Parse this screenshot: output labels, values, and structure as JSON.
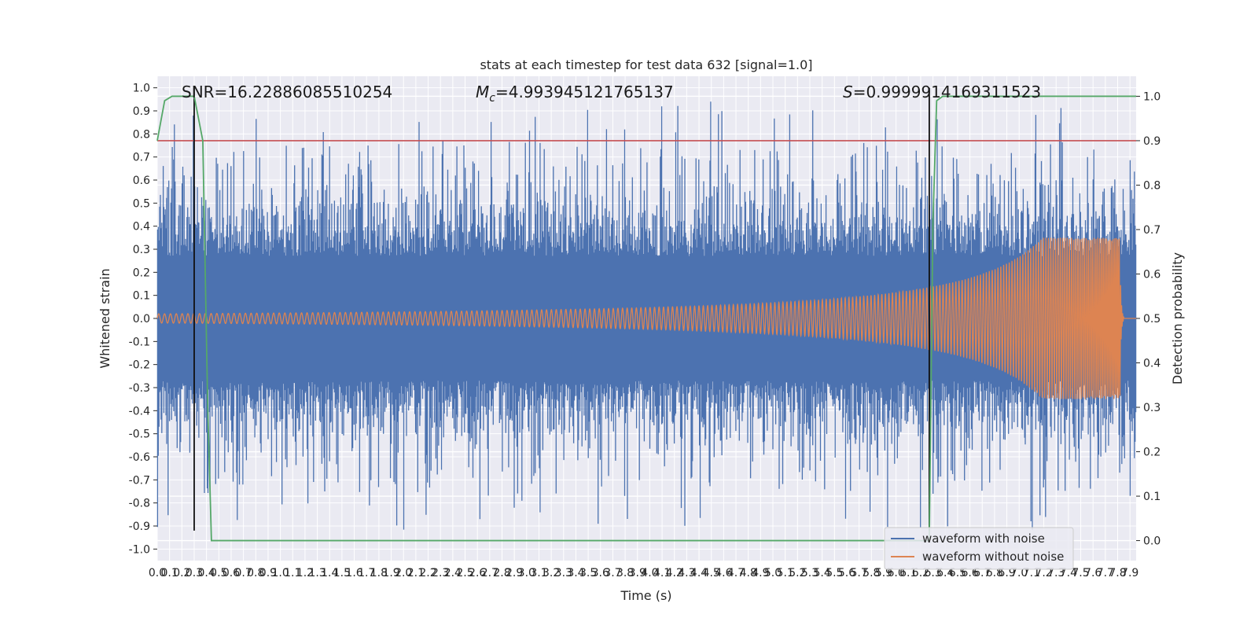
{
  "chart_data": {
    "type": "line",
    "title": "stats at each timestep for test data 632 [signal=1.0]",
    "xlabel": "Time (s)",
    "ylabel_left": "Whitened strain",
    "ylabel_right": "Detection probability",
    "xlim": [
      0.0,
      7.95
    ],
    "ylim_left": [
      -1.05,
      1.05
    ],
    "ylim_right": [
      -0.045,
      1.045
    ],
    "x_ticks": [
      "0.0",
      "0.1",
      "0.2",
      "0.3",
      "0.4",
      "0.5",
      "0.6",
      "0.7",
      "0.8",
      "0.9",
      "1.0",
      "1.1",
      "1.2",
      "1.3",
      "1.4",
      "1.5",
      "1.6",
      "1.7",
      "1.8",
      "1.9",
      "2.0",
      "2.1",
      "2.2",
      "2.3",
      "2.4",
      "2.5",
      "2.6",
      "2.7",
      "2.8",
      "2.9",
      "3.0",
      "3.1",
      "3.2",
      "3.3",
      "3.4",
      "3.5",
      "3.6",
      "3.7",
      "3.8",
      "3.9",
      "4.0",
      "4.1",
      "4.2",
      "4.3",
      "4.4",
      "4.5",
      "4.6",
      "4.7",
      "4.8",
      "4.9",
      "5.0",
      "5.1",
      "5.2",
      "5.3",
      "5.4",
      "5.5",
      "5.6",
      "5.7",
      "5.8",
      "5.9",
      "6.0",
      "6.1",
      "6.2",
      "6.3",
      "6.4",
      "6.5",
      "6.6",
      "6.7",
      "6.8",
      "6.9",
      "7.0",
      "7.1",
      "7.2",
      "7.3",
      "7.4",
      "7.5",
      "7.6",
      "7.7",
      "7.8",
      "7.9"
    ],
    "y_ticks_left": [
      "-1.0",
      "-0.9",
      "-0.8",
      "-0.7",
      "-0.6",
      "-0.5",
      "-0.4",
      "-0.3",
      "-0.2",
      "-0.1",
      "0.0",
      "0.1",
      "0.2",
      "0.3",
      "0.4",
      "0.5",
      "0.6",
      "0.7",
      "0.8",
      "0.9",
      "1.0"
    ],
    "y_ticks_right": [
      "0.0",
      "0.1",
      "0.2",
      "0.3",
      "0.4",
      "0.5",
      "0.6",
      "0.7",
      "0.8",
      "0.9",
      "1.0"
    ],
    "annotations": {
      "snr": "SNR=16.22886085510254",
      "mc_symbol": "M",
      "mc_sub": "c",
      "mc_value": "=4.993945121765137",
      "s_symbol": "S",
      "s_value": "=0.9999914169311523"
    },
    "threshold": {
      "axis": "right",
      "value": 0.9,
      "color": "#c44e52"
    },
    "vertical_markers": [
      0.3,
      6.27
    ],
    "series": [
      {
        "name": "waveform with noise",
        "axis": "left",
        "color": "#4c72b0",
        "description": "whitened noisy strain, amplitude roughly within [-0.9, 0.97]"
      },
      {
        "name": "waveform without noise",
        "axis": "left",
        "color": "#dd8452",
        "description": "chirp signal, amplitude growing from ~0.02 to ~0.35, merger near t=7.82 s"
      },
      {
        "name": "detection probability",
        "axis": "right",
        "color": "#55a868",
        "x": [
          0.0,
          0.06,
          0.12,
          0.3,
          0.37,
          0.41,
          0.44,
          6.25,
          6.27,
          6.3,
          6.33,
          6.38,
          6.5,
          7.95
        ],
        "y": [
          0.9,
          0.99,
          1.0,
          1.0,
          0.9,
          0.3,
          0.0,
          0.0,
          0.0,
          0.72,
          0.99,
          1.0,
          1.0,
          1.0
        ]
      }
    ],
    "legend": {
      "location": "lower-right",
      "items": [
        {
          "label": "waveform with noise",
          "color": "#4c72b0"
        },
        {
          "label": "waveform without noise",
          "color": "#dd8452"
        }
      ]
    },
    "grid": true
  }
}
